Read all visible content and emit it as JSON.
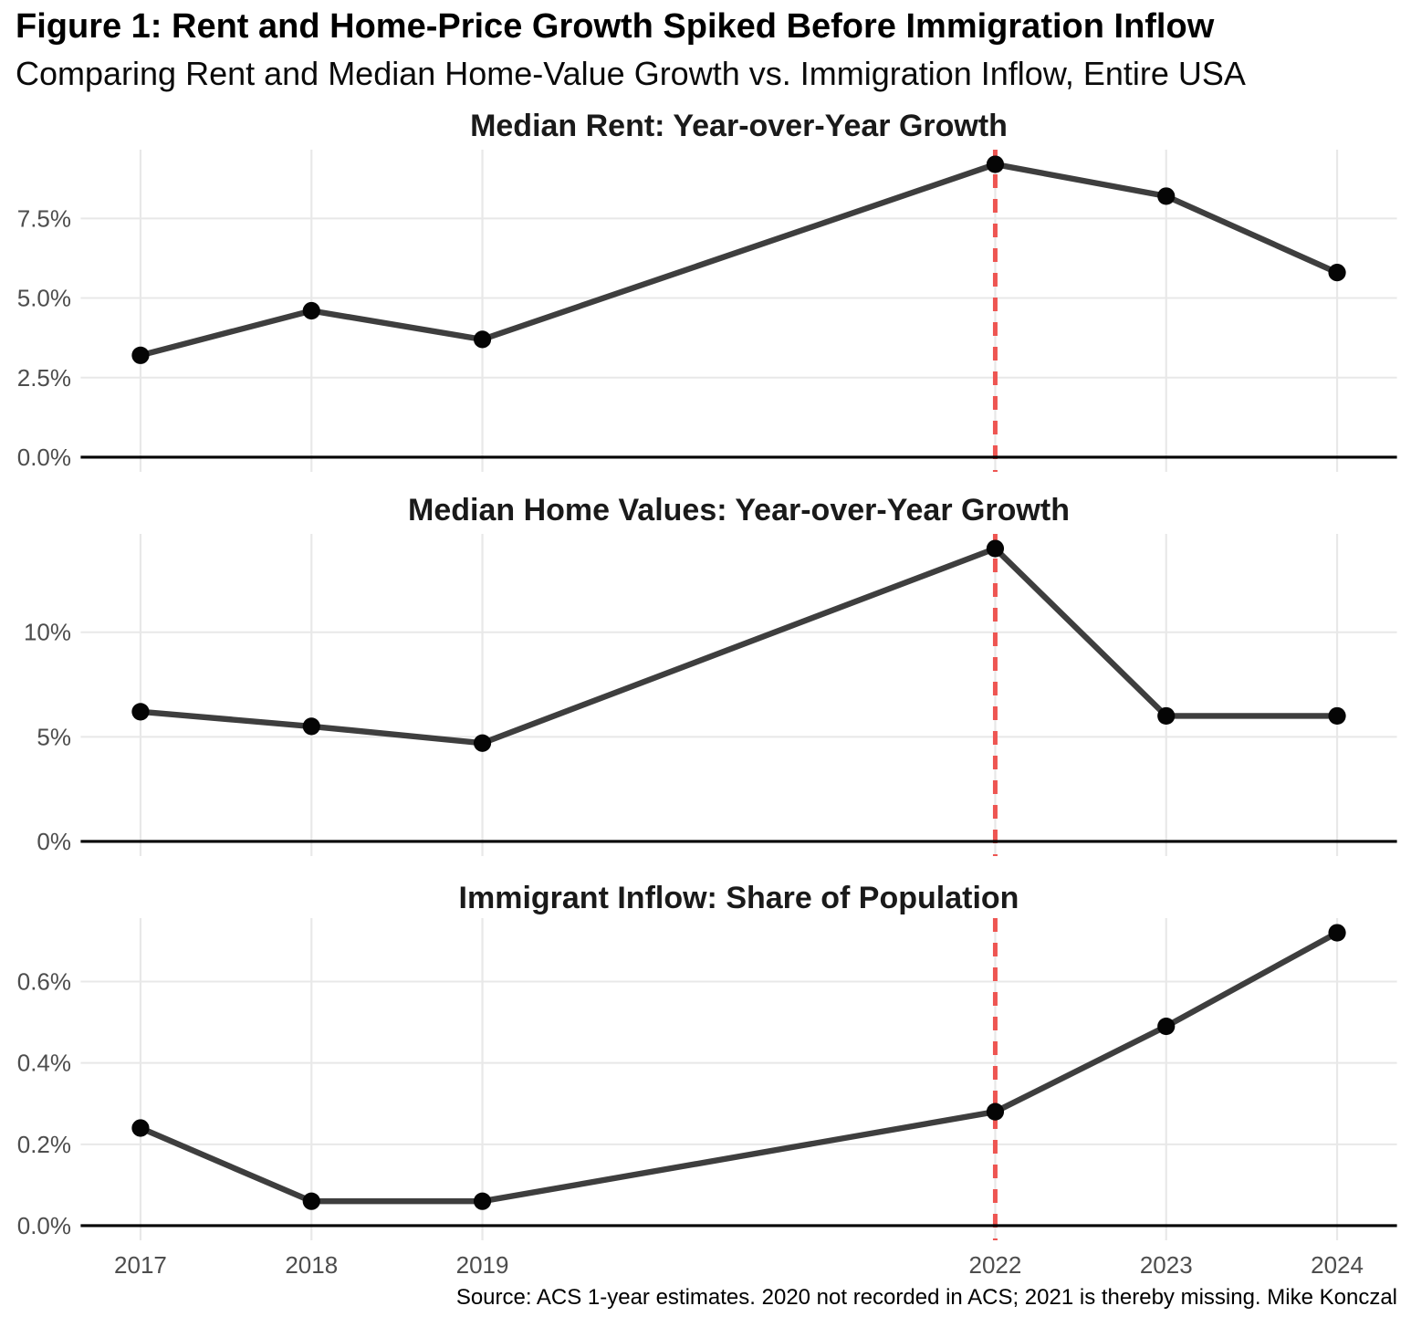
{
  "header": {
    "title": "Figure 1: Rent and Home-Price Growth Spiked Before Immigration Inflow",
    "subtitle": "Comparing Rent and Median Home-Value Growth vs. Immigration Inflow, Entire USA"
  },
  "caption": "Source: ACS 1-year estimates. 2020 not recorded in ACS; 2021 is thereby missing. Mike Konczal",
  "colors": {
    "line": "#3E3E3E",
    "point": "#050505",
    "vline": "#EE5552",
    "gridline": "#E8E8E8",
    "axis_line": "#000000",
    "tick_text": "#4d4d4d"
  },
  "x_axis": {
    "tick_values": [
      2017,
      2018,
      2019,
      2022,
      2023,
      2024
    ],
    "tick_labels": [
      "2017",
      "2018",
      "2019",
      "2022",
      "2023",
      "2024"
    ],
    "xlim": [
      2016.65,
      2024.35
    ],
    "vline_year": 2022,
    "note": "years 2020 and 2021 absent"
  },
  "chart_data": [
    {
      "type": "line",
      "title": "Median Rent: Year-over-Year Growth",
      "x": [
        2017,
        2018,
        2019,
        2022,
        2023,
        2024
      ],
      "values": [
        3.2,
        4.6,
        3.7,
        9.2,
        8.2,
        5.8
      ],
      "unit": "percent",
      "ylim": [
        -0.46,
        9.66
      ],
      "yticks": [
        {
          "v": 0,
          "label": "0.0%"
        },
        {
          "v": 2.5,
          "label": "2.5%"
        },
        {
          "v": 5,
          "label": "5.0%"
        },
        {
          "v": 7.5,
          "label": "7.5%"
        }
      ],
      "grid": true,
      "legend": false
    },
    {
      "type": "line",
      "title": "Median Home Values: Year-over-Year Growth",
      "x": [
        2017,
        2018,
        2019,
        2022,
        2023,
        2024
      ],
      "values": [
        6.2,
        5.5,
        4.7,
        14.0,
        6.0,
        6.0
      ],
      "unit": "percent",
      "ylim": [
        -0.7,
        14.7
      ],
      "yticks": [
        {
          "v": 0,
          "label": "0%"
        },
        {
          "v": 5,
          "label": "5%"
        },
        {
          "v": 10,
          "label": "10%"
        }
      ],
      "grid": true,
      "legend": false
    },
    {
      "type": "line",
      "title": "Immigrant Inflow: Share of Population",
      "x": [
        2017,
        2018,
        2019,
        2022,
        2023,
        2024
      ],
      "values": [
        0.24,
        0.06,
        0.06,
        0.28,
        0.49,
        0.72
      ],
      "unit": "percent",
      "ylim": [
        -0.036,
        0.756
      ],
      "yticks": [
        {
          "v": 0,
          "label": "0.0%"
        },
        {
          "v": 0.2,
          "label": "0.2%"
        },
        {
          "v": 0.4,
          "label": "0.4%"
        },
        {
          "v": 0.6,
          "label": "0.6%"
        }
      ],
      "grid": true,
      "legend": false
    }
  ]
}
